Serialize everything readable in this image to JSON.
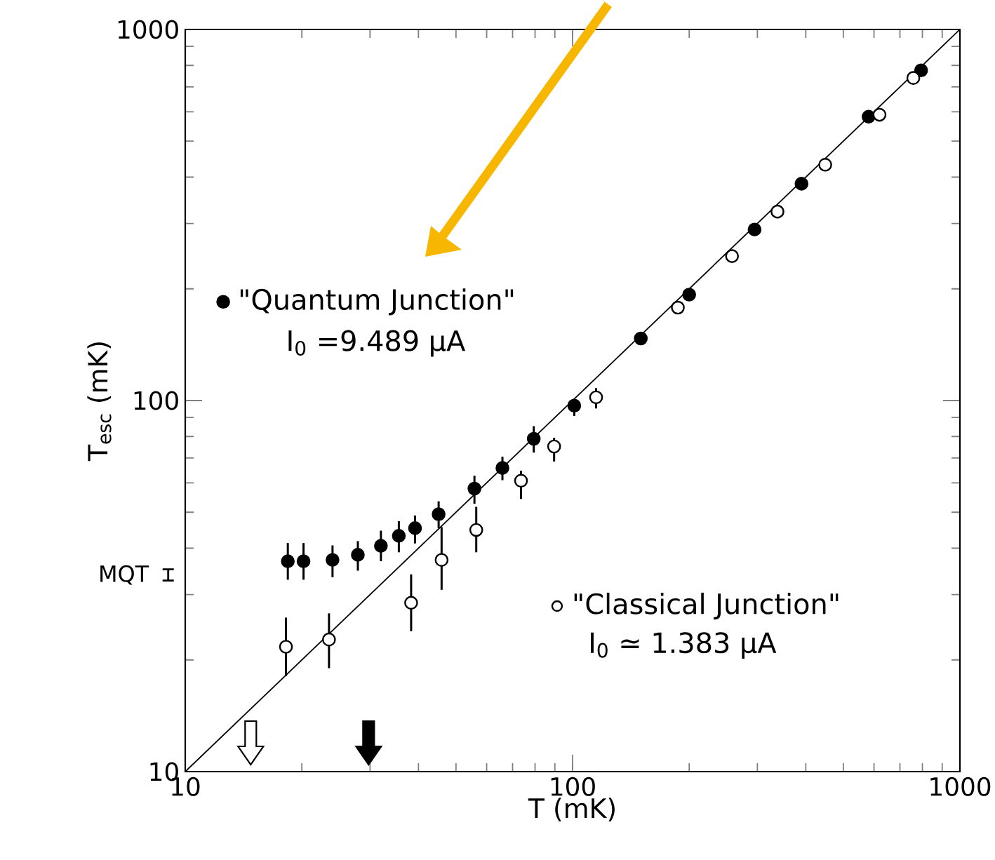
{
  "chart_data": {
    "type": "scatter",
    "xlabel": "T (mK)",
    "ylabel": "T$_{esc}$ (mK)",
    "log": "xy",
    "xlim": [
      10,
      1000
    ],
    "ylim": [
      10,
      1000
    ],
    "xticks": [
      10,
      100,
      1000
    ],
    "yticks": [
      10,
      100,
      1000
    ],
    "annotations": [
      "I$_{0}$ =9.489 μA",
      "I$_{0}$ ≃ 1.383 μA",
      "MQT"
    ],
    "legend": "left",
    "series": [
      {
        "name": "\"Quantum Junction\"",
        "color": "#000000",
        "marker": "circle",
        "x": [
          18.4,
          20.2,
          24.0,
          27.9,
          32.0,
          35.6,
          39.2,
          45.1,
          55.8,
          65.9,
          79.4,
          101,
          150,
          200,
          295,
          390,
          581,
          794
        ],
        "values": [
          36.9,
          36.9,
          37.2,
          38.4,
          40.6,
          43.2,
          45.3,
          49.4,
          57.9,
          65.8,
          78.9,
          96.9,
          147,
          193,
          289,
          384,
          582,
          776
        ],
        "errors": [
          [
            32.9,
            41.3
          ],
          [
            32.9,
            41.3
          ],
          [
            33.4,
            40.7
          ],
          [
            34.8,
            41.8
          ],
          [
            36.9,
            44.6
          ],
          [
            39.0,
            47.3
          ],
          [
            41.2,
            49.0
          ],
          [
            45.3,
            53.5
          ],
          [
            52.7,
            62.7
          ],
          [
            61.0,
            70.6
          ],
          [
            72.4,
            85.3
          ],
          [
            90.9,
            100.8
          ],
          null,
          null,
          null,
          null,
          null,
          null
        ]
      },
      {
        "name": "\"Classical Junction\"",
        "color": "#ffffff",
        "marker": "circle",
        "x": [
          18.2,
          23.5,
          38.3,
          45.9,
          56.4,
          73.6,
          89.6,
          115,
          187,
          258,
          338,
          449,
          620,
          758
        ],
        "values": [
          21.7,
          22.7,
          28.5,
          37.2,
          44.8,
          60.8,
          75.2,
          102,
          178,
          245,
          323,
          432,
          589,
          740
        ],
        "errors": [
          [
            18.1,
            26.0
          ],
          [
            19.0,
            26.7
          ],
          [
            23.9,
            34.0
          ],
          [
            30.9,
            45.6
          ],
          [
            39.0,
            51.7
          ],
          [
            54.3,
            64.7
          ],
          [
            68.5,
            79.4
          ],
          [
            95.2,
            108
          ],
          null,
          null,
          null,
          null,
          null,
          null
        ]
      },
      {
        "type": "line",
        "color": "#000000",
        "line_style": "solid",
        "x": [
          10,
          1000
        ],
        "values": [
          10,
          1000
        ]
      }
    ]
  }
}
